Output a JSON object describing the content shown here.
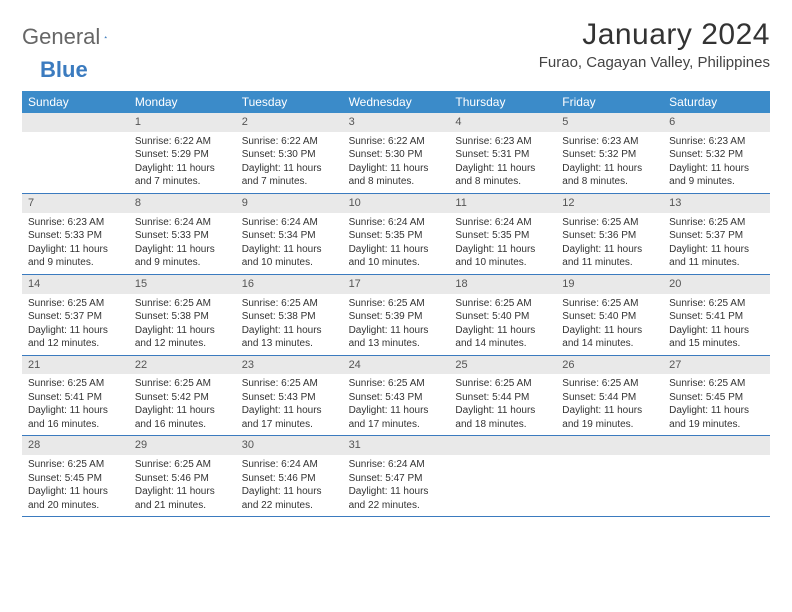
{
  "brand": {
    "part1": "General",
    "part2": "Blue"
  },
  "title": "January 2024",
  "location": "Furao, Cagayan Valley, Philippines",
  "colors": {
    "header_bg": "#3b8bc9",
    "header_text": "#ffffff",
    "daynum_bg": "#e9e9e9",
    "week_border": "#3b7bbf",
    "brand_blue": "#3b7bbf",
    "text": "#333333"
  },
  "day_names": [
    "Sunday",
    "Monday",
    "Tuesday",
    "Wednesday",
    "Thursday",
    "Friday",
    "Saturday"
  ],
  "weeks": [
    [
      null,
      {
        "n": "1",
        "sr": "Sunrise: 6:22 AM",
        "ss": "Sunset: 5:29 PM",
        "d1": "Daylight: 11 hours",
        "d2": "and 7 minutes."
      },
      {
        "n": "2",
        "sr": "Sunrise: 6:22 AM",
        "ss": "Sunset: 5:30 PM",
        "d1": "Daylight: 11 hours",
        "d2": "and 7 minutes."
      },
      {
        "n": "3",
        "sr": "Sunrise: 6:22 AM",
        "ss": "Sunset: 5:30 PM",
        "d1": "Daylight: 11 hours",
        "d2": "and 8 minutes."
      },
      {
        "n": "4",
        "sr": "Sunrise: 6:23 AM",
        "ss": "Sunset: 5:31 PM",
        "d1": "Daylight: 11 hours",
        "d2": "and 8 minutes."
      },
      {
        "n": "5",
        "sr": "Sunrise: 6:23 AM",
        "ss": "Sunset: 5:32 PM",
        "d1": "Daylight: 11 hours",
        "d2": "and 8 minutes."
      },
      {
        "n": "6",
        "sr": "Sunrise: 6:23 AM",
        "ss": "Sunset: 5:32 PM",
        "d1": "Daylight: 11 hours",
        "d2": "and 9 minutes."
      }
    ],
    [
      {
        "n": "7",
        "sr": "Sunrise: 6:23 AM",
        "ss": "Sunset: 5:33 PM",
        "d1": "Daylight: 11 hours",
        "d2": "and 9 minutes."
      },
      {
        "n": "8",
        "sr": "Sunrise: 6:24 AM",
        "ss": "Sunset: 5:33 PM",
        "d1": "Daylight: 11 hours",
        "d2": "and 9 minutes."
      },
      {
        "n": "9",
        "sr": "Sunrise: 6:24 AM",
        "ss": "Sunset: 5:34 PM",
        "d1": "Daylight: 11 hours",
        "d2": "and 10 minutes."
      },
      {
        "n": "10",
        "sr": "Sunrise: 6:24 AM",
        "ss": "Sunset: 5:35 PM",
        "d1": "Daylight: 11 hours",
        "d2": "and 10 minutes."
      },
      {
        "n": "11",
        "sr": "Sunrise: 6:24 AM",
        "ss": "Sunset: 5:35 PM",
        "d1": "Daylight: 11 hours",
        "d2": "and 10 minutes."
      },
      {
        "n": "12",
        "sr": "Sunrise: 6:25 AM",
        "ss": "Sunset: 5:36 PM",
        "d1": "Daylight: 11 hours",
        "d2": "and 11 minutes."
      },
      {
        "n": "13",
        "sr": "Sunrise: 6:25 AM",
        "ss": "Sunset: 5:37 PM",
        "d1": "Daylight: 11 hours",
        "d2": "and 11 minutes."
      }
    ],
    [
      {
        "n": "14",
        "sr": "Sunrise: 6:25 AM",
        "ss": "Sunset: 5:37 PM",
        "d1": "Daylight: 11 hours",
        "d2": "and 12 minutes."
      },
      {
        "n": "15",
        "sr": "Sunrise: 6:25 AM",
        "ss": "Sunset: 5:38 PM",
        "d1": "Daylight: 11 hours",
        "d2": "and 12 minutes."
      },
      {
        "n": "16",
        "sr": "Sunrise: 6:25 AM",
        "ss": "Sunset: 5:38 PM",
        "d1": "Daylight: 11 hours",
        "d2": "and 13 minutes."
      },
      {
        "n": "17",
        "sr": "Sunrise: 6:25 AM",
        "ss": "Sunset: 5:39 PM",
        "d1": "Daylight: 11 hours",
        "d2": "and 13 minutes."
      },
      {
        "n": "18",
        "sr": "Sunrise: 6:25 AM",
        "ss": "Sunset: 5:40 PM",
        "d1": "Daylight: 11 hours",
        "d2": "and 14 minutes."
      },
      {
        "n": "19",
        "sr": "Sunrise: 6:25 AM",
        "ss": "Sunset: 5:40 PM",
        "d1": "Daylight: 11 hours",
        "d2": "and 14 minutes."
      },
      {
        "n": "20",
        "sr": "Sunrise: 6:25 AM",
        "ss": "Sunset: 5:41 PM",
        "d1": "Daylight: 11 hours",
        "d2": "and 15 minutes."
      }
    ],
    [
      {
        "n": "21",
        "sr": "Sunrise: 6:25 AM",
        "ss": "Sunset: 5:41 PM",
        "d1": "Daylight: 11 hours",
        "d2": "and 16 minutes."
      },
      {
        "n": "22",
        "sr": "Sunrise: 6:25 AM",
        "ss": "Sunset: 5:42 PM",
        "d1": "Daylight: 11 hours",
        "d2": "and 16 minutes."
      },
      {
        "n": "23",
        "sr": "Sunrise: 6:25 AM",
        "ss": "Sunset: 5:43 PM",
        "d1": "Daylight: 11 hours",
        "d2": "and 17 minutes."
      },
      {
        "n": "24",
        "sr": "Sunrise: 6:25 AM",
        "ss": "Sunset: 5:43 PM",
        "d1": "Daylight: 11 hours",
        "d2": "and 17 minutes."
      },
      {
        "n": "25",
        "sr": "Sunrise: 6:25 AM",
        "ss": "Sunset: 5:44 PM",
        "d1": "Daylight: 11 hours",
        "d2": "and 18 minutes."
      },
      {
        "n": "26",
        "sr": "Sunrise: 6:25 AM",
        "ss": "Sunset: 5:44 PM",
        "d1": "Daylight: 11 hours",
        "d2": "and 19 minutes."
      },
      {
        "n": "27",
        "sr": "Sunrise: 6:25 AM",
        "ss": "Sunset: 5:45 PM",
        "d1": "Daylight: 11 hours",
        "d2": "and 19 minutes."
      }
    ],
    [
      {
        "n": "28",
        "sr": "Sunrise: 6:25 AM",
        "ss": "Sunset: 5:45 PM",
        "d1": "Daylight: 11 hours",
        "d2": "and 20 minutes."
      },
      {
        "n": "29",
        "sr": "Sunrise: 6:25 AM",
        "ss": "Sunset: 5:46 PM",
        "d1": "Daylight: 11 hours",
        "d2": "and 21 minutes."
      },
      {
        "n": "30",
        "sr": "Sunrise: 6:24 AM",
        "ss": "Sunset: 5:46 PM",
        "d1": "Daylight: 11 hours",
        "d2": "and 22 minutes."
      },
      {
        "n": "31",
        "sr": "Sunrise: 6:24 AM",
        "ss": "Sunset: 5:47 PM",
        "d1": "Daylight: 11 hours",
        "d2": "and 22 minutes."
      },
      null,
      null,
      null
    ]
  ]
}
